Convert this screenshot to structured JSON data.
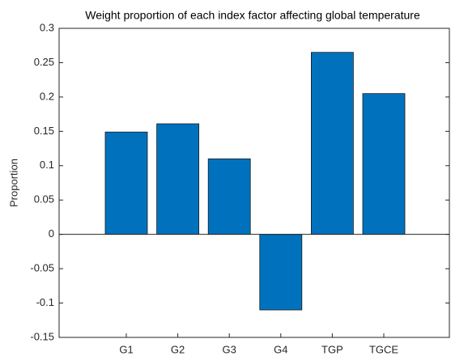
{
  "chart_data": {
    "type": "bar",
    "title": "Weight proportion of each index factor affecting global temperature",
    "y_label": "Proportion",
    "categories": [
      "G1",
      "G2",
      "G3",
      "G4",
      "TGP",
      "TGCE"
    ],
    "values": [
      0.149,
      0.161,
      0.11,
      -0.11,
      0.265,
      0.205
    ],
    "color": "#0072bd",
    "ylim": [
      -0.15,
      0.3
    ],
    "yticks": [
      -0.15,
      -0.1,
      -0.05,
      0,
      0.05,
      0.1,
      0.15,
      0.2,
      0.25,
      0.3
    ],
    "grid": false
  }
}
